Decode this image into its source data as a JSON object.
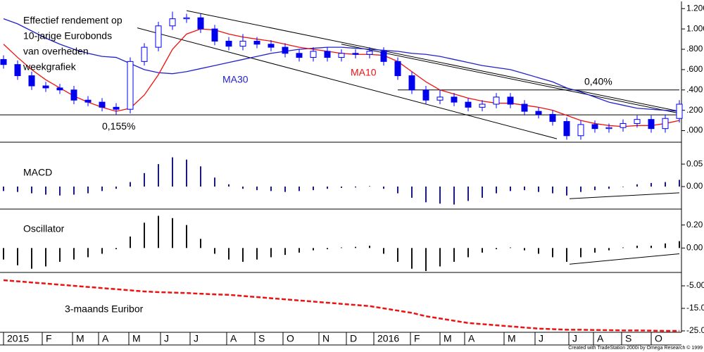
{
  "chart_data": [
    {
      "type": "candlestick",
      "annotations": [
        "Effectief rendement op",
        "10-jarige Eurobonds",
        "van overheden",
        "weekgrafiek"
      ],
      "ma_labels": [
        "MA30",
        "MA10"
      ],
      "open": [
        0.7,
        0.65,
        0.54,
        0.44,
        0.42,
        0.4,
        0.3,
        0.28,
        0.23,
        0.21,
        0.68,
        0.82,
        1.03,
        1.1,
        1.11,
        1.0,
        0.88,
        0.83,
        0.88,
        0.85,
        0.82,
        0.76,
        0.72,
        0.78,
        0.72,
        0.76,
        0.75,
        0.78,
        0.68,
        0.54,
        0.4,
        0.3,
        0.33,
        0.28,
        0.23,
        0.26,
        0.33,
        0.26,
        0.19,
        0.16,
        0.09,
        -0.05,
        0.06,
        0.02,
        0.03,
        0.07,
        0.11,
        0.02,
        0.12
      ],
      "high": [
        0.74,
        0.69,
        0.58,
        0.48,
        0.46,
        0.44,
        0.34,
        0.32,
        0.27,
        0.72,
        0.86,
        1.07,
        1.17,
        1.15,
        1.15,
        1.04,
        0.92,
        0.95,
        0.92,
        0.89,
        0.86,
        0.8,
        0.82,
        0.82,
        0.8,
        0.8,
        0.82,
        0.82,
        0.72,
        0.58,
        0.44,
        0.4,
        0.37,
        0.32,
        0.3,
        0.37,
        0.37,
        0.3,
        0.23,
        0.2,
        0.13,
        0.1,
        0.1,
        0.07,
        0.11,
        0.15,
        0.15,
        0.16,
        0.3
      ],
      "low": [
        0.61,
        0.5,
        0.4,
        0.38,
        0.36,
        0.26,
        0.24,
        0.19,
        0.155,
        0.17,
        0.64,
        0.78,
        0.99,
        1.06,
        0.96,
        0.84,
        0.79,
        0.79,
        0.81,
        0.78,
        0.72,
        0.68,
        0.68,
        0.68,
        0.68,
        0.71,
        0.71,
        0.64,
        0.5,
        0.36,
        0.26,
        0.26,
        0.24,
        0.19,
        0.19,
        0.22,
        0.22,
        0.15,
        0.12,
        0.05,
        -0.09,
        -0.09,
        -0.02,
        -0.02,
        -0.01,
        0.03,
        -0.02,
        -0.02,
        0.08
      ],
      "close": [
        0.65,
        0.54,
        0.44,
        0.42,
        0.4,
        0.3,
        0.28,
        0.23,
        0.21,
        0.68,
        0.82,
        1.03,
        1.1,
        1.11,
        1.0,
        0.88,
        0.83,
        0.88,
        0.85,
        0.82,
        0.76,
        0.72,
        0.78,
        0.72,
        0.76,
        0.75,
        0.78,
        0.68,
        0.54,
        0.4,
        0.3,
        0.33,
        0.28,
        0.23,
        0.26,
        0.33,
        0.26,
        0.19,
        0.16,
        0.09,
        -0.05,
        0.06,
        0.02,
        0.03,
        0.07,
        0.11,
        0.02,
        0.12,
        0.26
      ],
      "color": "#0000ee",
      "series": [
        {
          "name": "MA30",
          "color": "#2222cc",
          "values": [
            1.1,
            1.05,
            0.98,
            0.91,
            0.85,
            0.8,
            0.76,
            0.73,
            0.72,
            0.66,
            0.6,
            0.57,
            0.56,
            0.58,
            0.61,
            0.64,
            0.67,
            0.7,
            0.73,
            0.76,
            0.78,
            0.8,
            0.81,
            0.82,
            0.82,
            0.81,
            0.8,
            0.79,
            0.78,
            0.76,
            0.75,
            0.73,
            0.7,
            0.67,
            0.64,
            0.62,
            0.6,
            0.56,
            0.52,
            0.48,
            0.42,
            0.38,
            0.33,
            0.28,
            0.25,
            0.22,
            0.21,
            0.2,
            0.19
          ]
        },
        {
          "name": "MA10",
          "color": "#ee1111",
          "values": [
            0.85,
            0.72,
            0.6,
            0.5,
            0.42,
            0.34,
            0.28,
            0.23,
            0.19,
            0.22,
            0.35,
            0.55,
            0.8,
            0.95,
            1.0,
            0.99,
            0.95,
            0.92,
            0.9,
            0.88,
            0.85,
            0.82,
            0.8,
            0.78,
            0.76,
            0.75,
            0.75,
            0.74,
            0.68,
            0.58,
            0.48,
            0.4,
            0.36,
            0.32,
            0.29,
            0.27,
            0.27,
            0.25,
            0.23,
            0.2,
            0.15,
            0.1,
            0.07,
            0.05,
            0.04,
            0.05,
            0.05,
            0.07,
            0.1
          ]
        }
      ],
      "trendlines": [
        [
          [
            13,
            1.18
          ],
          [
            48,
            0.19
          ]
        ],
        [
          [
            9.5,
            1.01
          ],
          [
            39.3,
            -0.08
          ]
        ],
        [
          [
            24,
            0.85
          ],
          [
            48,
            0.17
          ]
        ]
      ],
      "levels": [
        {
          "value": 0.4,
          "from": 28,
          "to": 48,
          "label": "0,40%"
        },
        {
          "value": 0.155,
          "from": -0.25,
          "to": 48.2,
          "label": "0,155%"
        }
      ],
      "ylim": [
        -0.1,
        1.25
      ],
      "yticks": [
        {
          "value": 1.2,
          "label": "1.200"
        },
        {
          "value": 1,
          "label": "1.000"
        },
        {
          "value": 0.8,
          "label": ".800"
        },
        {
          "value": 0.6,
          "label": ".600"
        },
        {
          "value": 0.4,
          "label": ".400"
        },
        {
          "value": 0.2,
          "label": ".200"
        },
        {
          "value": 0,
          "label": ".000"
        }
      ]
    },
    {
      "type": "histogram-bars",
      "title": "MACD",
      "color": "#1a1a80",
      "values": [
        -0.01,
        -0.012,
        -0.015,
        -0.018,
        -0.02,
        -0.018,
        -0.015,
        -0.01,
        -0.005,
        0.01,
        0.03,
        0.05,
        0.065,
        0.06,
        0.045,
        0.02,
        0.005,
        -0.005,
        -0.008,
        -0.01,
        -0.012,
        -0.01,
        -0.008,
        -0.005,
        -0.003,
        -0.002,
        0.001,
        -0.005,
        -0.015,
        -0.025,
        -0.035,
        -0.038,
        -0.04,
        -0.032,
        -0.025,
        -0.015,
        -0.01,
        -0.008,
        -0.012,
        -0.015,
        -0.02,
        -0.012,
        -0.008,
        -0.005,
        -0.001,
        0.005,
        0.008,
        0.01,
        0.015
      ],
      "trendlines": [
        [
          [
            40.2,
            -0.027
          ],
          [
            48,
            -0.014
          ]
        ]
      ],
      "ylim": [
        -0.047,
        0.094
      ],
      "yticks": [
        {
          "value": 0.05,
          "label": "0.05"
        },
        {
          "value": 0,
          "label": "0.00"
        }
      ]
    },
    {
      "type": "histogram-bars",
      "title": "Oscillator",
      "color": "#111111",
      "values": [
        -0.1,
        -0.15,
        -0.18,
        -0.16,
        -0.12,
        -0.1,
        -0.08,
        -0.05,
        -0.01,
        0.1,
        0.22,
        0.28,
        0.26,
        0.2,
        0.08,
        -0.05,
        -0.1,
        -0.12,
        -0.1,
        -0.08,
        -0.06,
        -0.04,
        -0.02,
        -0.01,
        0.005,
        0.01,
        0.02,
        -0.05,
        -0.12,
        -0.18,
        -0.2,
        -0.16,
        -0.12,
        -0.08,
        -0.04,
        -0.01,
        0.005,
        -0.02,
        -0.05,
        -0.08,
        -0.12,
        -0.08,
        -0.04,
        -0.02,
        0.005,
        0.02,
        0.02,
        0.04,
        0.06
      ],
      "trendlines": [
        [
          [
            40.2,
            -0.14
          ],
          [
            48,
            -0.05
          ]
        ]
      ],
      "ylim": [
        -0.2,
        0.32
      ],
      "yticks": [
        {
          "value": 0.2,
          "label": "0.20"
        },
        {
          "value": 0,
          "label": "0.00"
        }
      ]
    },
    {
      "type": "dashed-line",
      "title": "3-maands Euribor",
      "color": "#ee1111",
      "values": [
        -2.5,
        -3.0,
        -3.5,
        -4.0,
        -4.5,
        -5.0,
        -5.5,
        -6.0,
        -6.5,
        -7.0,
        -7.5,
        -7.8,
        -8.0,
        -8.2,
        -8.5,
        -8.8,
        -9.0,
        -9.5,
        -10.0,
        -10.5,
        -11.0,
        -11.5,
        -12.0,
        -12.5,
        -13.0,
        -13.5,
        -14.0,
        -15.0,
        -16.0,
        -17.0,
        -18.5,
        -19.5,
        -20.5,
        -21.5,
        -22.0,
        -22.5,
        -23.0,
        -23.5,
        -24.0,
        -24.2,
        -24.5,
        -24.5,
        -24.6,
        -24.7,
        -24.8,
        -24.8,
        -24.9,
        -25.0,
        -25.0
      ],
      "ylim": [
        -25,
        0
      ],
      "yticks": [
        {
          "value": -5,
          "label": "-5.00"
        },
        {
          "value": -15,
          "label": "-15.00"
        },
        {
          "value": -25,
          "label": "-25.00"
        }
      ],
      "xticks": [
        {
          "value": 0,
          "label": "2015"
        },
        {
          "value": 2.75,
          "label": "F"
        },
        {
          "value": 4.9,
          "label": "M"
        },
        {
          "value": 6.75,
          "label": "A"
        },
        {
          "value": 8.9,
          "label": "M"
        },
        {
          "value": 11.15,
          "label": "J"
        },
        {
          "value": 13.25,
          "label": "J"
        },
        {
          "value": 15.85,
          "label": "A"
        },
        {
          "value": 17.85,
          "label": "S"
        },
        {
          "value": 19.85,
          "label": "O"
        },
        {
          "value": 22.4,
          "label": "N"
        },
        {
          "value": 24.35,
          "label": "D"
        },
        {
          "value": 26.3,
          "label": "2016"
        },
        {
          "value": 28.9,
          "label": "F"
        },
        {
          "value": 31,
          "label": "M"
        },
        {
          "value": 32.75,
          "label": "A"
        },
        {
          "value": 35.55,
          "label": "M"
        },
        {
          "value": 37.75,
          "label": "J"
        },
        {
          "value": 40.15,
          "label": "J"
        },
        {
          "value": 41.9,
          "label": "A"
        },
        {
          "value": 43.9,
          "label": "S"
        },
        {
          "value": 46,
          "label": "O"
        }
      ],
      "footer": "Created with TradeStation 2000i by Omega Research © 1999"
    }
  ]
}
